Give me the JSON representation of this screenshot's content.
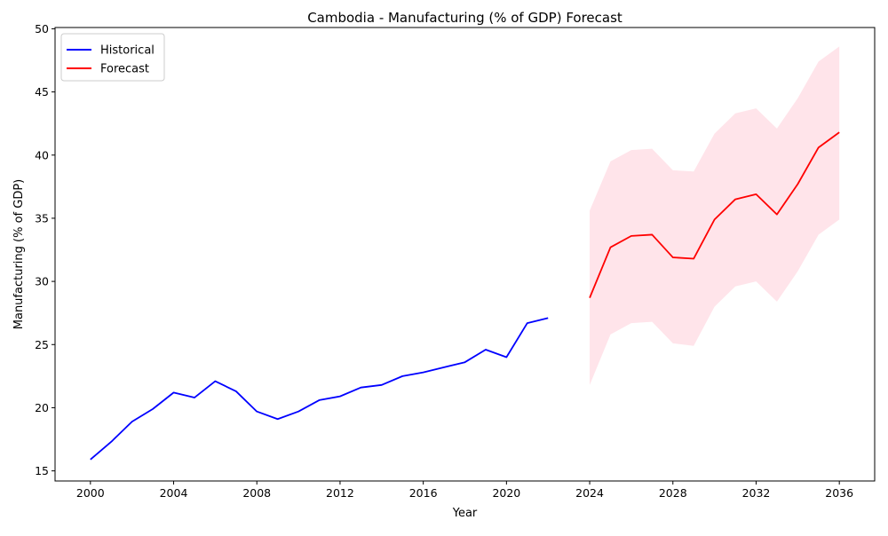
{
  "chart_data": {
    "type": "line",
    "title": "Cambodia - Manufacturing (% of GDP) Forecast",
    "xlabel": "Year",
    "ylabel": "Manufacturing (% of GDP)",
    "xlim": [
      1998.3,
      2037.7
    ],
    "ylim": [
      14.2,
      50.1
    ],
    "xticks": [
      2000,
      2004,
      2008,
      2012,
      2016,
      2020,
      2024,
      2028,
      2032,
      2036
    ],
    "yticks": [
      15,
      20,
      25,
      30,
      35,
      40,
      45,
      50
    ],
    "grid": false,
    "legend_position": "upper-left",
    "colors": {
      "historical": "#0000ff",
      "forecast": "#ff0000",
      "band": "#ffe4ea"
    },
    "series": [
      {
        "name": "Historical",
        "x": [
          2000,
          2001,
          2002,
          2003,
          2004,
          2005,
          2006,
          2007,
          2008,
          2009,
          2010,
          2011,
          2012,
          2013,
          2014,
          2015,
          2016,
          2017,
          2018,
          2019,
          2020,
          2021,
          2022
        ],
        "values": [
          15.9,
          17.3,
          18.9,
          19.9,
          21.2,
          20.8,
          22.1,
          21.3,
          19.7,
          19.1,
          19.7,
          20.6,
          20.9,
          21.6,
          21.8,
          22.5,
          22.8,
          23.2,
          23.6,
          24.6,
          24.0,
          26.7,
          27.1
        ]
      },
      {
        "name": "Forecast",
        "x": [
          2024,
          2025,
          2026,
          2027,
          2028,
          2029,
          2030,
          2031,
          2032,
          2033,
          2034,
          2035,
          2036
        ],
        "values": [
          28.7,
          32.7,
          33.6,
          33.7,
          31.9,
          31.8,
          34.9,
          36.5,
          36.9,
          35.3,
          37.7,
          40.6,
          41.8
        ],
        "lower": [
          21.8,
          25.8,
          26.7,
          26.8,
          25.1,
          24.9,
          28.0,
          29.6,
          30.0,
          28.4,
          30.8,
          33.7,
          34.9
        ],
        "upper": [
          35.6,
          39.5,
          40.4,
          40.5,
          38.8,
          38.7,
          41.7,
          43.3,
          43.7,
          42.1,
          44.5,
          47.4,
          48.6
        ]
      }
    ]
  }
}
